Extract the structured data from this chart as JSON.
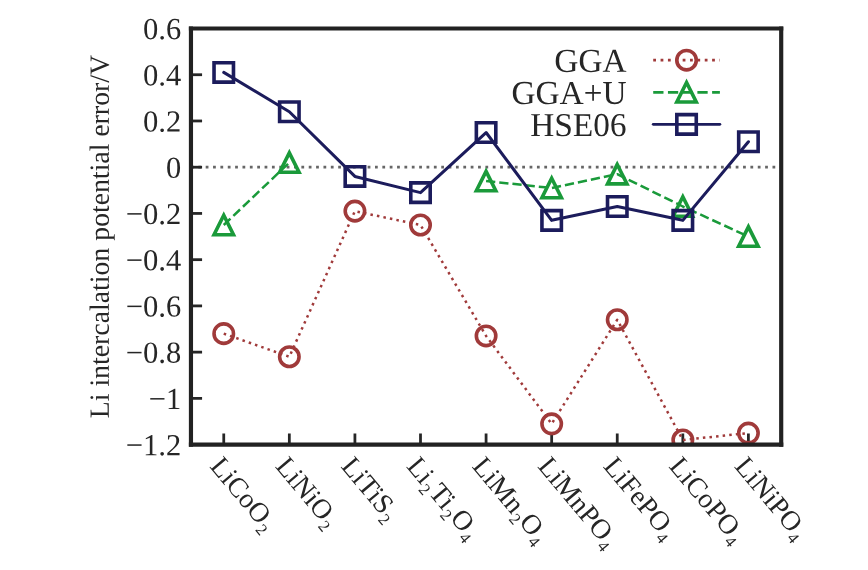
{
  "chart_data": {
    "type": "line",
    "ylabel": "Li intercalation potential error/V",
    "categories": [
      "LiCoO₂",
      "LiNiO₂",
      "LiTiS₂",
      "Li₂Ti₂O₄",
      "LiMn₂O₄",
      "LiMnPO₄",
      "LiFePO₄",
      "LiCoPO₄",
      "LiNiPO₄"
    ],
    "series": [
      {
        "name": "GGA",
        "color": "#a03a3a",
        "marker": "circle",
        "line_style": "dotted",
        "values": [
          -0.72,
          -0.82,
          -0.19,
          -0.25,
          -0.73,
          -1.11,
          -0.66,
          -1.18,
          -1.15
        ]
      },
      {
        "name": "GGA+U",
        "color": "#1a9a3a",
        "marker": "triangle",
        "line_style": "dashed",
        "values": [
          -0.25,
          0.02,
          null,
          null,
          -0.06,
          -0.09,
          -0.03,
          -0.17,
          -0.3
        ]
      },
      {
        "name": "HSE06",
        "color": "#1c1c5c",
        "marker": "square",
        "line_style": "solid",
        "values": [
          0.41,
          0.24,
          -0.04,
          -0.11,
          0.15,
          -0.23,
          -0.17,
          -0.23,
          0.11
        ]
      }
    ],
    "ylim": [
      -1.2,
      0.6
    ],
    "yticks": [
      {
        "value": -1.2,
        "label": "−1.2"
      },
      {
        "value": -1,
        "label": "−1"
      },
      {
        "value": -0.8,
        "label": "−0.8"
      },
      {
        "value": -0.6,
        "label": "−0.6"
      },
      {
        "value": -0.4,
        "label": "−0.4"
      },
      {
        "value": -0.2,
        "label": "−0.2"
      },
      0,
      0.2,
      0.4,
      0.6
    ],
    "ref_lines": [
      {
        "axis": "y",
        "value": 0,
        "color": "#666666",
        "line_style": "dotted"
      }
    ],
    "legend": "top right",
    "grid": false
  }
}
